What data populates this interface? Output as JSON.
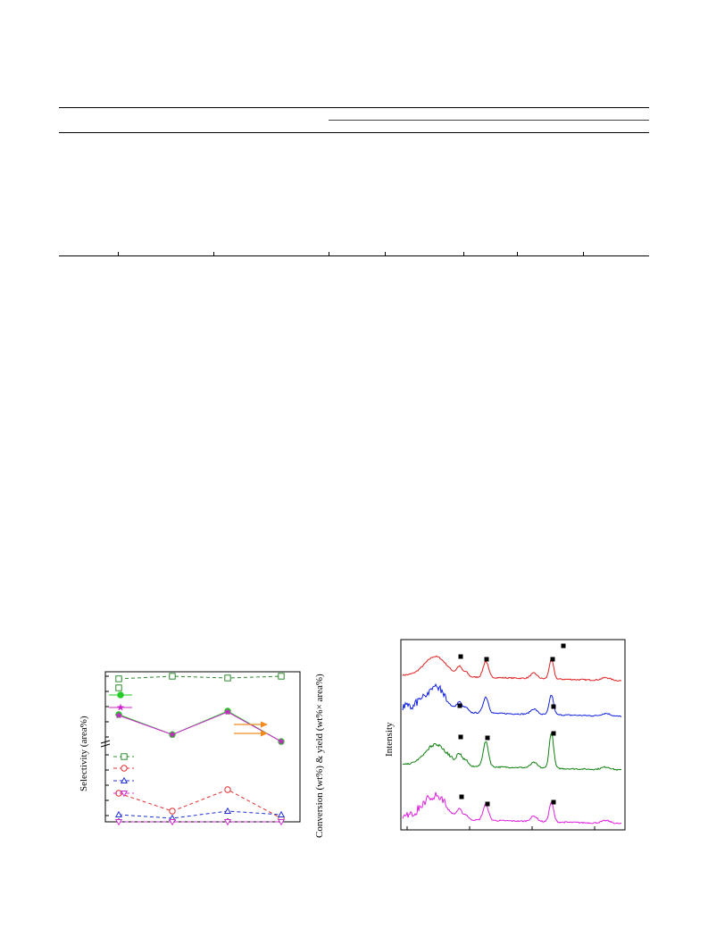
{
  "table": {
    "header_groups": 1,
    "column_count": 8
  },
  "figure_left": {
    "y_axis_label": "Selectivity (area%)",
    "right_axis_label": "Conversion (wt%) & yield (wt%× area%)",
    "legend_upper": [
      {
        "marker": "open-square",
        "color": "#2e8b2e",
        "line": "dashed"
      },
      {
        "marker": "filled-circle",
        "color": "#22cc22",
        "line": "solid"
      },
      {
        "marker": "star",
        "color": "#cc22cc",
        "line": "solid"
      }
    ],
    "legend_lower": [
      {
        "marker": "open-square",
        "color": "#2e8b2e",
        "line": "dashed"
      },
      {
        "marker": "open-circle",
        "color": "#e03030",
        "line": "dashed"
      },
      {
        "marker": "open-triangle-up",
        "color": "#2030d0",
        "line": "dashed"
      },
      {
        "marker": "open-triangle-down",
        "color": "#d030d0",
        "line": "dashed"
      }
    ],
    "arrow_color": "#f08c1e"
  },
  "chart_data": [
    {
      "type": "line",
      "x": [
        1,
        2,
        3,
        4
      ],
      "series": [
        {
          "marker": "open-square",
          "color": "#2e8b2e",
          "dashed": true,
          "values": [
            97,
            100,
            98,
            100
          ]
        },
        {
          "marker": "filled-circle",
          "color": "#22cc22",
          "dashed": false,
          "values": [
            56,
            33,
            60,
            25
          ]
        },
        {
          "marker": "star",
          "color": "#cc22cc",
          "dashed": false,
          "values": [
            55,
            33,
            59,
            25
          ]
        },
        {
          "marker": "open-circle",
          "color": "#e03030",
          "dashed": true,
          "values": [
            8,
            3,
            9,
            1
          ]
        },
        {
          "marker": "open-triangle-up",
          "color": "#2030d0",
          "dashed": true,
          "values": [
            2,
            1,
            3,
            2
          ]
        },
        {
          "marker": "open-triangle-down",
          "color": "#d030d0",
          "dashed": true,
          "values": [
            0,
            0,
            0,
            0
          ]
        }
      ],
      "ylabel": "Selectivity (area%)",
      "y2label": "Conversion (wt%) & yield (wt%× area%)",
      "axis_break": true
    },
    {
      "type": "line",
      "ylabel": "Intensity",
      "series": [
        {
          "color": "#e02020",
          "offset": 3,
          "peaks_marked": [
            0.26,
            0.38,
            0.68,
            0.73
          ]
        },
        {
          "color": "#1020e0",
          "offset": 2,
          "peaks_marked": [
            0.25,
            0.68
          ]
        },
        {
          "color": "#108010",
          "offset": 1,
          "peaks_marked": [
            0.26,
            0.38,
            0.68
          ]
        },
        {
          "color": "#e020e0",
          "offset": 0,
          "peaks_marked": [
            0.26,
            0.37,
            0.68
          ]
        }
      ]
    }
  ]
}
